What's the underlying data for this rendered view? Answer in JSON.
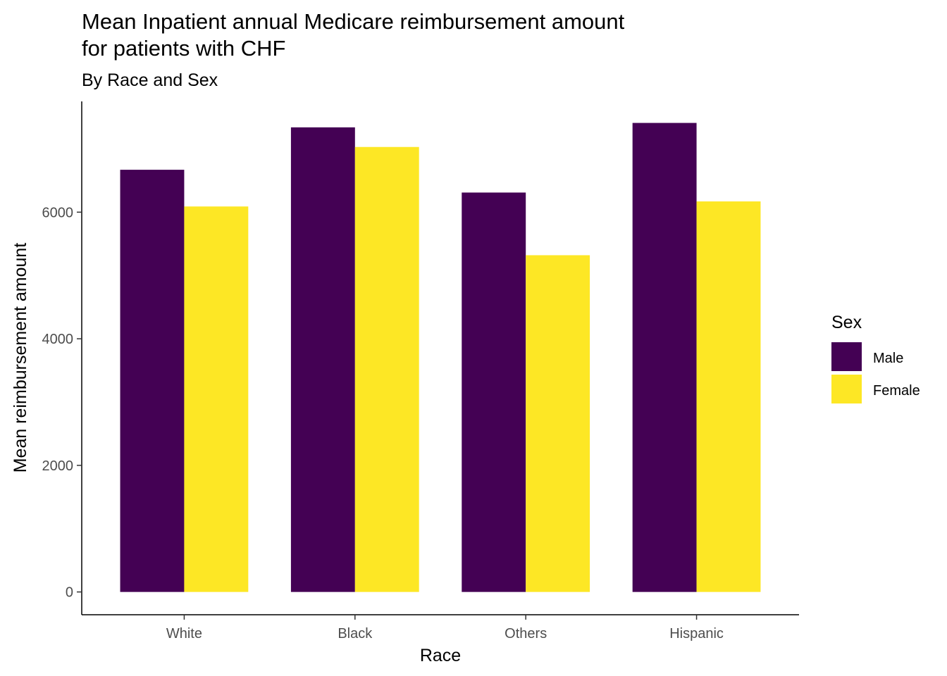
{
  "chart_data": {
    "type": "bar",
    "title": "Mean Inpatient annual Medicare reimbursement amount\n for patients with CHF",
    "subtitle": "By Race and Sex",
    "xlabel": "Race",
    "ylabel": "Mean reimbursement amount",
    "categories": [
      "White",
      "Black",
      "Others",
      "Hispanic"
    ],
    "series": [
      {
        "name": "Male",
        "color": "#440154",
        "values": [
          6670,
          7340,
          6310,
          7410
        ]
      },
      {
        "name": "Female",
        "color": "#FDE725",
        "values": [
          6090,
          7030,
          5320,
          6170
        ]
      }
    ],
    "ylim": [
      -360,
      7750
    ],
    "yticks": [
      0,
      2000,
      4000,
      6000
    ],
    "legend": {
      "title": "Sex",
      "position": "right"
    },
    "grid": false
  }
}
